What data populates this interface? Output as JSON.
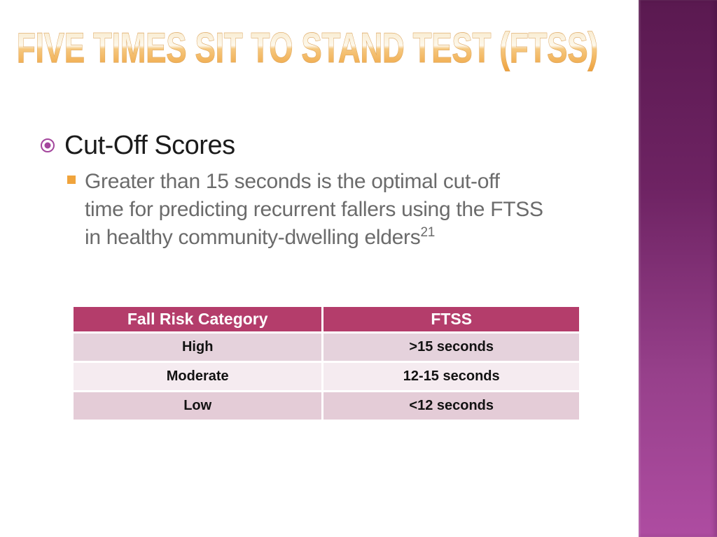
{
  "title": {
    "text": "FIVE TIMES SIT TO STAND TEST (FTSS)"
  },
  "bullets": {
    "main": "Cut-Off Scores",
    "sub_lines": [
      "Greater than 15 seconds is the optimal cut-off",
      "time for predicting recurrent fallers using the FTSS",
      "in healthy community-dwelling elders"
    ],
    "sub_superscript": "21"
  },
  "table": {
    "headers": [
      "Fall Risk Category",
      "FTSS"
    ],
    "rows": [
      [
        "High",
        ">15 seconds"
      ],
      [
        "Moderate",
        "12-15 seconds"
      ],
      [
        "Low",
        "<12 seconds"
      ]
    ]
  },
  "colors": {
    "header_bg": "#b43d6b",
    "row_odd_bg": "#e5d2dc",
    "row_even_bg": "#f5ebf0",
    "row_low_bg": "#e4ccd7",
    "sidebar_top": "#5a1950",
    "sidebar_bottom": "#ae4ca1",
    "bullet_circle": "#a4469d",
    "bullet_square": "#f0a43c",
    "body_text": "#6b6b6b",
    "title_grad_top": "#f7e6c4",
    "title_grad_mid_light": "#fdf8ec",
    "title_grad_mid_dark": "#f6c87f",
    "title_grad_bottom": "#eea13c",
    "title_stroke": "#dca45c"
  }
}
